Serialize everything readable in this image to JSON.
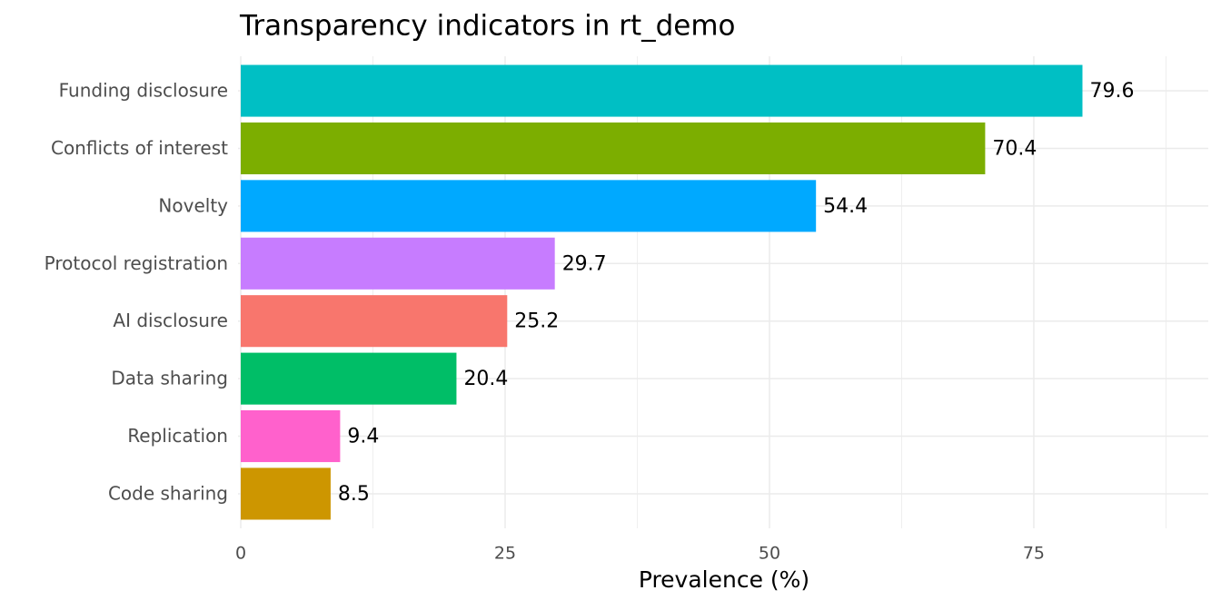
{
  "chart_data": {
    "type": "barh",
    "title": "Transparency indicators in rt_demo",
    "x_label": "Prevalence (%)",
    "categories": [
      "Funding disclosure",
      "Conflicts of interest",
      "Novelty",
      "Protocol registration",
      "AI disclosure",
      "Data sharing",
      "Replication",
      "Code sharing"
    ],
    "values": [
      79.6,
      70.4,
      54.4,
      29.7,
      25.2,
      20.4,
      9.4,
      8.5
    ],
    "colors": [
      "#00bfc4",
      "#7cae00",
      "#00a9ff",
      "#c77cff",
      "#f8766d",
      "#00be67",
      "#ff61cc",
      "#cd9600"
    ],
    "xlim": [
      0,
      91.5
    ],
    "xticks": [
      0,
      25,
      50,
      75
    ],
    "minor_xticks": [
      12.5,
      37.5,
      62.5,
      87.5
    ],
    "grid": true
  }
}
